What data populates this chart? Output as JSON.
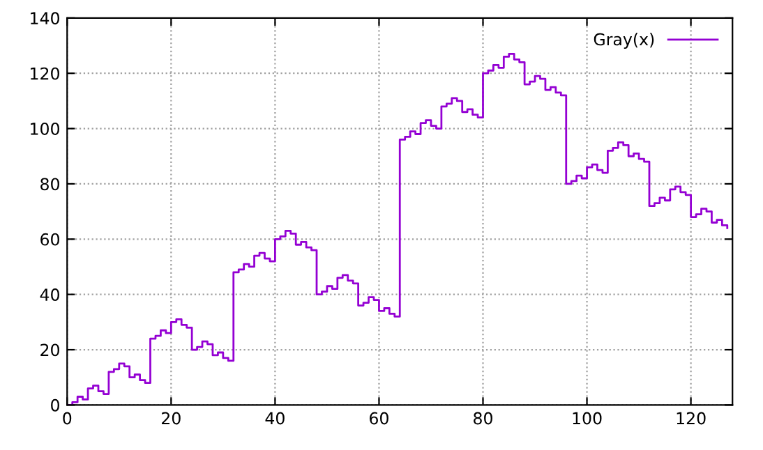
{
  "chart_data": {
    "type": "step",
    "x": [
      0,
      1,
      2,
      3,
      4,
      5,
      6,
      7,
      8,
      9,
      10,
      11,
      12,
      13,
      14,
      15,
      16,
      17,
      18,
      19,
      20,
      21,
      22,
      23,
      24,
      25,
      26,
      27,
      28,
      29,
      30,
      31,
      32,
      33,
      34,
      35,
      36,
      37,
      38,
      39,
      40,
      41,
      42,
      43,
      44,
      45,
      46,
      47,
      48,
      49,
      50,
      51,
      52,
      53,
      54,
      55,
      56,
      57,
      58,
      59,
      60,
      61,
      62,
      63,
      64,
      65,
      66,
      67,
      68,
      69,
      70,
      71,
      72,
      73,
      74,
      75,
      76,
      77,
      78,
      79,
      80,
      81,
      82,
      83,
      84,
      85,
      86,
      87,
      88,
      89,
      90,
      91,
      92,
      93,
      94,
      95,
      96,
      97,
      98,
      99,
      100,
      101,
      102,
      103,
      104,
      105,
      106,
      107,
      108,
      109,
      110,
      111,
      112,
      113,
      114,
      115,
      116,
      117,
      118,
      119,
      120,
      121,
      122,
      123,
      124,
      125,
      126,
      127
    ],
    "series": [
      {
        "name": "Gray(x)",
        "color": "#9400d3",
        "values": [
          0,
          1,
          3,
          2,
          6,
          7,
          5,
          4,
          12,
          13,
          15,
          14,
          10,
          11,
          9,
          8,
          24,
          25,
          27,
          26,
          30,
          31,
          29,
          28,
          20,
          21,
          23,
          22,
          18,
          19,
          17,
          16,
          48,
          49,
          51,
          50,
          54,
          55,
          53,
          52,
          60,
          61,
          63,
          62,
          58,
          59,
          57,
          56,
          40,
          41,
          43,
          42,
          46,
          47,
          45,
          44,
          36,
          37,
          39,
          38,
          34,
          35,
          33,
          32,
          96,
          97,
          99,
          98,
          102,
          103,
          101,
          100,
          108,
          109,
          111,
          110,
          106,
          107,
          105,
          104,
          120,
          121,
          123,
          122,
          126,
          127,
          125,
          124,
          116,
          117,
          119,
          118,
          114,
          115,
          113,
          112,
          80,
          81,
          83,
          82,
          86,
          87,
          85,
          84,
          92,
          93,
          95,
          94,
          90,
          91,
          89,
          88,
          72,
          73,
          75,
          74,
          78,
          79,
          77,
          76,
          68,
          69,
          71,
          70,
          66,
          67,
          65,
          64
        ]
      }
    ],
    "xlim": [
      0,
      128
    ],
    "xticks": [
      0,
      20,
      40,
      60,
      80,
      100,
      120
    ],
    "ylim": [
      0,
      140
    ],
    "yticks": [
      0,
      20,
      40,
      60,
      80,
      100,
      120,
      140
    ],
    "grid": true,
    "legend": "top right"
  }
}
